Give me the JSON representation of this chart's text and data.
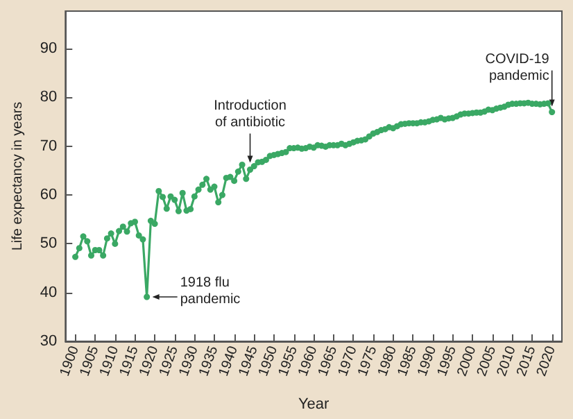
{
  "chart_data": {
    "type": "line",
    "xlabel": "Year",
    "ylabel": "Life expectancy in years",
    "x": [
      1900,
      1901,
      1902,
      1903,
      1904,
      1905,
      1906,
      1907,
      1908,
      1909,
      1910,
      1911,
      1912,
      1913,
      1914,
      1915,
      1916,
      1917,
      1918,
      1919,
      1920,
      1921,
      1922,
      1923,
      1924,
      1925,
      1926,
      1927,
      1928,
      1929,
      1930,
      1931,
      1932,
      1933,
      1934,
      1935,
      1936,
      1937,
      1938,
      1939,
      1940,
      1941,
      1942,
      1943,
      1944,
      1945,
      1946,
      1947,
      1948,
      1949,
      1950,
      1951,
      1952,
      1953,
      1954,
      1955,
      1956,
      1957,
      1958,
      1959,
      1960,
      1961,
      1962,
      1963,
      1964,
      1965,
      1966,
      1967,
      1968,
      1969,
      1970,
      1971,
      1972,
      1973,
      1974,
      1975,
      1976,
      1977,
      1978,
      1979,
      1980,
      1981,
      1982,
      1983,
      1984,
      1985,
      1986,
      1987,
      1988,
      1989,
      1990,
      1991,
      1992,
      1993,
      1994,
      1995,
      1996,
      1997,
      1998,
      1999,
      2000,
      2001,
      2002,
      2003,
      2004,
      2005,
      2006,
      2007,
      2008,
      2009,
      2010,
      2011,
      2012,
      2013,
      2014,
      2015,
      2016,
      2017,
      2018,
      2019,
      2020
    ],
    "series": [
      {
        "color": "#3aa864",
        "values": [
          47.3,
          49.1,
          51.5,
          50.5,
          47.6,
          48.7,
          48.7,
          47.6,
          51.1,
          52.1,
          50.0,
          52.6,
          53.5,
          52.5,
          54.2,
          54.5,
          51.7,
          50.9,
          39.1,
          54.7,
          54.1,
          60.8,
          59.6,
          57.2,
          59.7,
          59.0,
          56.7,
          60.4,
          56.8,
          57.1,
          59.7,
          61.1,
          62.1,
          63.3,
          61.1,
          61.7,
          58.5,
          60.0,
          63.5,
          63.7,
          62.9,
          64.8,
          66.2,
          63.3,
          65.2,
          65.9,
          66.7,
          66.8,
          67.2,
          68.0,
          68.2,
          68.4,
          68.6,
          68.8,
          69.6,
          69.6,
          69.7,
          69.5,
          69.6,
          69.9,
          69.7,
          70.2,
          70.1,
          69.9,
          70.2,
          70.2,
          70.2,
          70.5,
          70.2,
          70.5,
          70.8,
          71.1,
          71.2,
          71.4,
          72.0,
          72.6,
          72.9,
          73.3,
          73.5,
          73.9,
          73.7,
          74.1,
          74.5,
          74.6,
          74.7,
          74.7,
          74.7,
          74.9,
          74.9,
          75.1,
          75.4,
          75.5,
          75.8,
          75.5,
          75.7,
          75.8,
          76.1,
          76.5,
          76.7,
          76.7,
          76.8,
          76.9,
          76.9,
          77.1,
          77.5,
          77.4,
          77.7,
          77.9,
          78.1,
          78.5,
          78.7,
          78.7,
          78.8,
          78.8,
          78.9,
          78.7,
          78.7,
          78.6,
          78.7,
          78.8,
          77.0
        ]
      }
    ],
    "xlim": [
      1897.5,
      2022.5
    ],
    "xticks": [
      1900,
      1905,
      1910,
      1915,
      1920,
      1925,
      1930,
      1935,
      1940,
      1945,
      1950,
      1955,
      1960,
      1965,
      1970,
      1975,
      1980,
      1985,
      1990,
      1995,
      2000,
      2005,
      2010,
      2015,
      2020
    ],
    "ylim": [
      30,
      97.7
    ],
    "yticks": [
      30,
      40,
      50,
      60,
      70,
      80,
      90
    ],
    "marker": "circle",
    "line_style": "solid",
    "annotations": [
      {
        "text": "Introduction\nof antibiotic",
        "x": 1944,
        "y": 65.2
      },
      {
        "text": "1918 flu\npandemic",
        "x": 1918,
        "y": 39.1
      },
      {
        "text": "COVID-19\npandemic",
        "x": 2020,
        "y": 77.0
      }
    ]
  }
}
